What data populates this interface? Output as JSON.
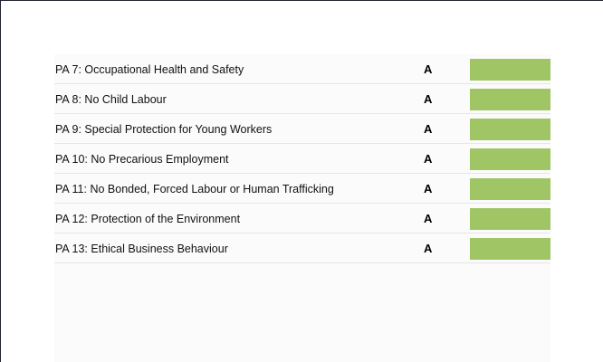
{
  "rows": [
    {
      "label": "PA 7: Occupational Health and Safety",
      "grade": "A"
    },
    {
      "label": "PA 8: No Child Labour",
      "grade": "A"
    },
    {
      "label": "PA 9: Special Protection for Young Workers",
      "grade": "A"
    },
    {
      "label": "PA 10: No Precarious Employment",
      "grade": "A"
    },
    {
      "label": "PA 11: No Bonded, Forced Labour or Human Trafficking",
      "grade": "A"
    },
    {
      "label": "PA 12: Protection of the Environment",
      "grade": "A"
    },
    {
      "label": "PA 13: Ethical Business Behaviour",
      "grade": "A"
    }
  ],
  "colors": {
    "grade_fill": "#9fc565",
    "row_divider": "#e6e6e6",
    "panel_background": "#fbfbfb"
  }
}
